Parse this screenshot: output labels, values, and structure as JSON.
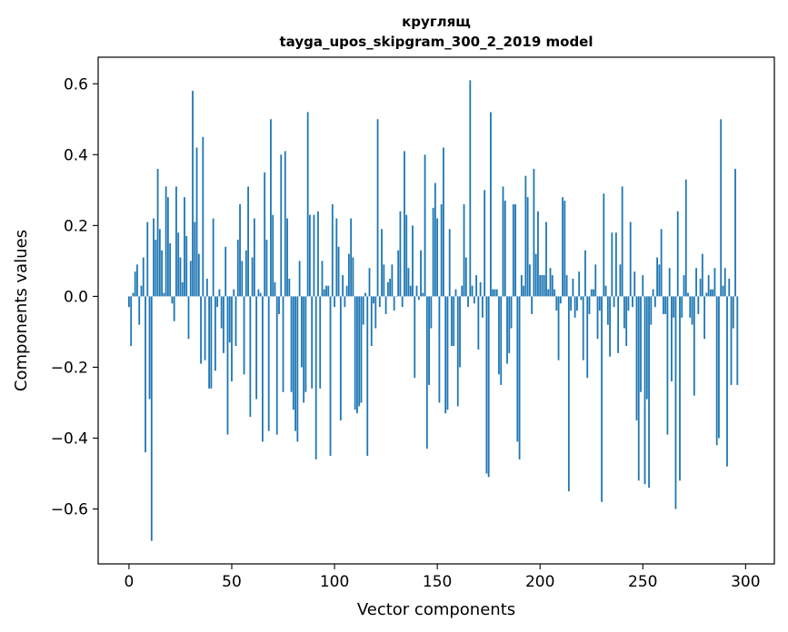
{
  "chart_data": {
    "type": "bar",
    "title_line1": "круглящ",
    "title_line2": "tayga_upos_skipgram_300_2_2019 model",
    "xlabel": "Vector components",
    "ylabel": "Components values",
    "xlim": [
      -15,
      314
    ],
    "ylim": [
      -0.755,
      0.675
    ],
    "xticks": [
      0,
      50,
      100,
      150,
      200,
      250,
      300
    ],
    "yticks": [
      -0.6,
      -0.4,
      -0.2,
      0.0,
      0.2,
      0.4,
      0.6
    ],
    "ytick_labels": [
      "−0.6",
      "−0.4",
      "−0.2",
      "0.0",
      "0.2",
      "0.4",
      "0.6"
    ],
    "bar_color": "#1f77b4",
    "grid": false,
    "values": [
      -0.03,
      -0.14,
      0.01,
      0.07,
      0.09,
      -0.08,
      0.03,
      0.11,
      -0.44,
      0.21,
      -0.29,
      -0.69,
      0.22,
      0.16,
      0.36,
      0.19,
      0.13,
      0.01,
      0.31,
      0.28,
      0.15,
      -0.02,
      -0.07,
      0.31,
      0.18,
      0.11,
      0.04,
      0.28,
      0.17,
      -0.12,
      0.1,
      0.58,
      0.21,
      0.42,
      0.12,
      -0.19,
      0.45,
      -0.18,
      0.05,
      -0.26,
      -0.26,
      0.22,
      -0.21,
      -0.03,
      0.02,
      -0.09,
      -0.16,
      0.14,
      -0.39,
      -0.13,
      -0.24,
      0.02,
      -0.14,
      0.16,
      0.26,
      0.1,
      -0.22,
      0.13,
      0.31,
      -0.34,
      0.11,
      0.22,
      -0.29,
      0.02,
      0.01,
      -0.41,
      0.35,
      0.16,
      -0.38,
      0.5,
      0.23,
      0.04,
      -0.39,
      -0.05,
      0.4,
      -0.27,
      0.41,
      0.22,
      0.05,
      -0.27,
      -0.32,
      -0.38,
      -0.41,
      0.1,
      -0.2,
      -0.3,
      -0.27,
      0.52,
      0.23,
      -0.26,
      0.23,
      -0.46,
      0.24,
      -0.26,
      0.1,
      0.02,
      0.03,
      0.03,
      -0.45,
      0.26,
      -0.03,
      0.22,
      0.14,
      -0.35,
      0.06,
      -0.03,
      0.03,
      0.12,
      0.22,
      0.11,
      -0.32,
      -0.33,
      -0.31,
      -0.3,
      -0.08,
      0.01,
      -0.45,
      0.08,
      -0.14,
      -0.02,
      -0.09,
      0.5,
      -0.03,
      0.19,
      0.09,
      -0.05,
      0.04,
      0.05,
      0.09,
      -0.04,
      0.0,
      0.13,
      0.24,
      -0.03,
      0.41,
      0.23,
      0.08,
      0.03,
      0.2,
      -0.23,
      0.03,
      -0.01,
      0.13,
      0.01,
      0.4,
      -0.43,
      -0.25,
      -0.09,
      0.25,
      0.32,
      0.22,
      -0.3,
      0.26,
      0.42,
      -0.33,
      -0.32,
      0.19,
      -0.14,
      -0.14,
      0.02,
      -0.31,
      -0.2,
      0.03,
      0.26,
      0.11,
      -0.03,
      0.61,
      0.03,
      -0.02,
      0.06,
      -0.15,
      0.04,
      -0.06,
      0.3,
      -0.5,
      -0.51,
      0.52,
      0.02,
      0.02,
      0.02,
      -0.22,
      -0.25,
      0.31,
      0.27,
      -0.19,
      -0.16,
      -0.09,
      0.26,
      0.26,
      -0.41,
      -0.46,
      0.06,
      0.03,
      0.34,
      0.28,
      0.09,
      -0.05,
      0.36,
      0.12,
      0.24,
      0.06,
      0.06,
      0.06,
      0.21,
      0.02,
      0.08,
      0.06,
      0.02,
      -0.04,
      -0.18,
      -0.02,
      0.28,
      0.27,
      0.06,
      -0.55,
      -0.04,
      0.05,
      -0.06,
      -0.04,
      0.07,
      -0.01,
      -0.18,
      0.13,
      -0.23,
      -0.05,
      0.02,
      0.02,
      0.09,
      -0.12,
      -0.04,
      -0.58,
      0.29,
      0.03,
      -0.08,
      -0.17,
      0.18,
      -0.03,
      0.18,
      -0.16,
      0.09,
      0.31,
      -0.09,
      -0.14,
      -0.04,
      0.21,
      -0.03,
      0.07,
      -0.35,
      -0.52,
      -0.27,
      0.06,
      -0.53,
      -0.29,
      -0.54,
      -0.08,
      0.02,
      -0.03,
      0.11,
      0.09,
      0.19,
      -0.05,
      -0.05,
      -0.39,
      0.08,
      -0.24,
      -0.06,
      -0.6,
      0.24,
      -0.52,
      -0.06,
      0.06,
      0.33,
      0.01,
      -0.06,
      -0.08,
      -0.28,
      0.08,
      -0.05,
      0.05,
      0.12,
      -0.12,
      0.01,
      0.06,
      0.02,
      0.02,
      0.08,
      -0.42,
      -0.4,
      0.5,
      0.03,
      0.08,
      -0.48,
      0.05,
      -0.25,
      -0.09,
      0.36,
      -0.25
    ]
  }
}
